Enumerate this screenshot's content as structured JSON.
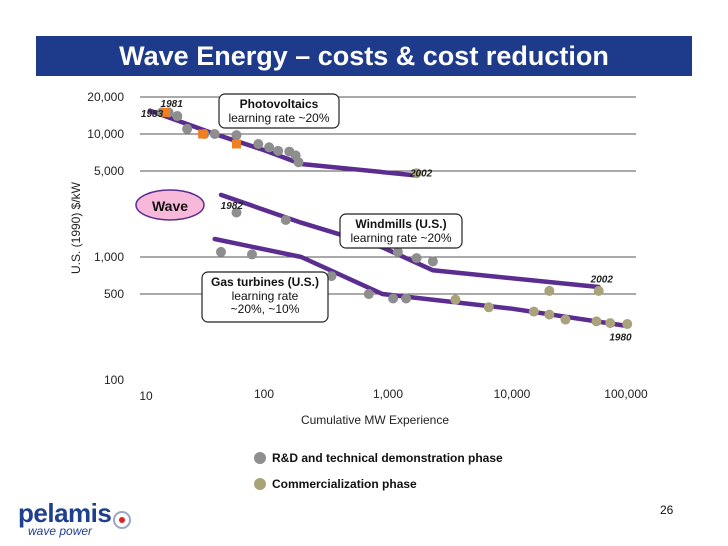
{
  "title": "Wave Energy – costs & cost reduction",
  "page_number": "26",
  "logo": {
    "main": "pelamis",
    "sub": "wave power"
  },
  "chart_data": {
    "type": "scatter",
    "title": "",
    "xlabel": "Cumulative MW Experience",
    "ylabel": "U.S. (1990) $/kW",
    "x_scale": "log",
    "y_scale": "log",
    "xlim": [
      10,
      100000
    ],
    "ylim": [
      100,
      20000
    ],
    "x_ticks": [
      10,
      100,
      1000,
      10000,
      100000
    ],
    "x_tick_labels": [
      "10",
      "100",
      "1,000",
      "10,000",
      "100,000"
    ],
    "y_ticks": [
      100,
      500,
      1000,
      5000,
      10000,
      20000
    ],
    "y_tick_labels": [
      "100",
      "500",
      "1,000",
      "5,000",
      "10,000",
      "20,000"
    ],
    "grid": "horizontal",
    "colors": {
      "rd": "#8e8e8e",
      "commercial": "#a9a27a",
      "trend": "#5b2d90",
      "wave": "#f07f22",
      "wave_label_bg": "#f7b8d9",
      "wave_label_border": "#5b2d90"
    },
    "legend": [
      {
        "label": "R&D and technical demonstration phase",
        "color": "#8e8e8e"
      },
      {
        "label": "Commercialization phase",
        "color": "#a9a27a"
      }
    ],
    "wave_label": "Wave",
    "annotations": [
      {
        "title": "Photovoltaics",
        "lines": [
          "learning rate ~20%"
        ]
      },
      {
        "title": "Windmills (U.S.)",
        "lines": [
          "learning rate ~20%"
        ]
      },
      {
        "title": "Gas turbines (U.S.)",
        "lines": [
          "learning rate",
          "~20%, ~10%"
        ]
      }
    ],
    "year_labels": [
      {
        "text": "1983",
        "x": 12.5,
        "y": 13800
      },
      {
        "text": "1981",
        "x": 18,
        "y": 16600
      },
      {
        "text": "2002",
        "x": 1850,
        "y": 4500
      },
      {
        "text": "1982",
        "x": 55,
        "y": 2450
      },
      {
        "text": "1987",
        "x": 2800,
        "y": 1220
      },
      {
        "text": "2002",
        "x": 53000,
        "y": 620
      },
      {
        "text": "1980",
        "x": 75000,
        "y": 210
      }
    ],
    "series": [
      {
        "name": "Photovoltaics",
        "rd": [
          [
            15,
            15000
          ],
          [
            17,
            15000
          ],
          [
            20,
            14000
          ],
          [
            24,
            11000
          ],
          [
            33,
            10000
          ],
          [
            40,
            10000
          ],
          [
            60,
            9800
          ],
          [
            90,
            8300
          ],
          [
            110,
            7800
          ],
          [
            130,
            7300
          ],
          [
            160,
            7200
          ],
          [
            180,
            6700
          ],
          [
            190,
            5900
          ]
        ],
        "commercial": [
          [
            1700,
            4800
          ]
        ],
        "trend": [
          [
            12,
            15500
          ],
          [
            40,
            10000
          ],
          [
            100,
            7400
          ],
          [
            200,
            5700
          ],
          [
            1700,
            4600
          ]
        ]
      },
      {
        "name": "Windmills (U.S.)",
        "rd": [
          [
            60,
            2300
          ],
          [
            150,
            2000
          ],
          [
            1200,
            1100
          ],
          [
            1700,
            980
          ],
          [
            2300,
            920
          ]
        ],
        "commercial": [
          [
            20000,
            530
          ],
          [
            50000,
            530
          ]
        ],
        "trend": [
          [
            45,
            3200
          ],
          [
            200,
            1900
          ],
          [
            900,
            1200
          ],
          [
            2300,
            780
          ],
          [
            50000,
            570
          ]
        ]
      },
      {
        "name": "Gas turbines (U.S.)",
        "rd": [
          [
            45,
            1100
          ],
          [
            80,
            1050
          ],
          [
            350,
            700
          ],
          [
            700,
            500
          ],
          [
            1100,
            460
          ],
          [
            1400,
            460
          ]
        ],
        "commercial": [
          [
            3500,
            450
          ],
          [
            6500,
            390
          ],
          [
            15000,
            360
          ],
          [
            20000,
            340
          ],
          [
            27000,
            310
          ],
          [
            48000,
            300
          ],
          [
            62000,
            290
          ],
          [
            85000,
            285
          ]
        ],
        "trend": [
          [
            40,
            1400
          ],
          [
            200,
            1000
          ],
          [
            900,
            500
          ],
          [
            10000,
            380
          ],
          [
            85000,
            275
          ]
        ]
      },
      {
        "name": "Wave",
        "points": [
          [
            16,
            15000
          ],
          [
            32,
            10000
          ],
          [
            60,
            8300
          ]
        ]
      }
    ]
  }
}
